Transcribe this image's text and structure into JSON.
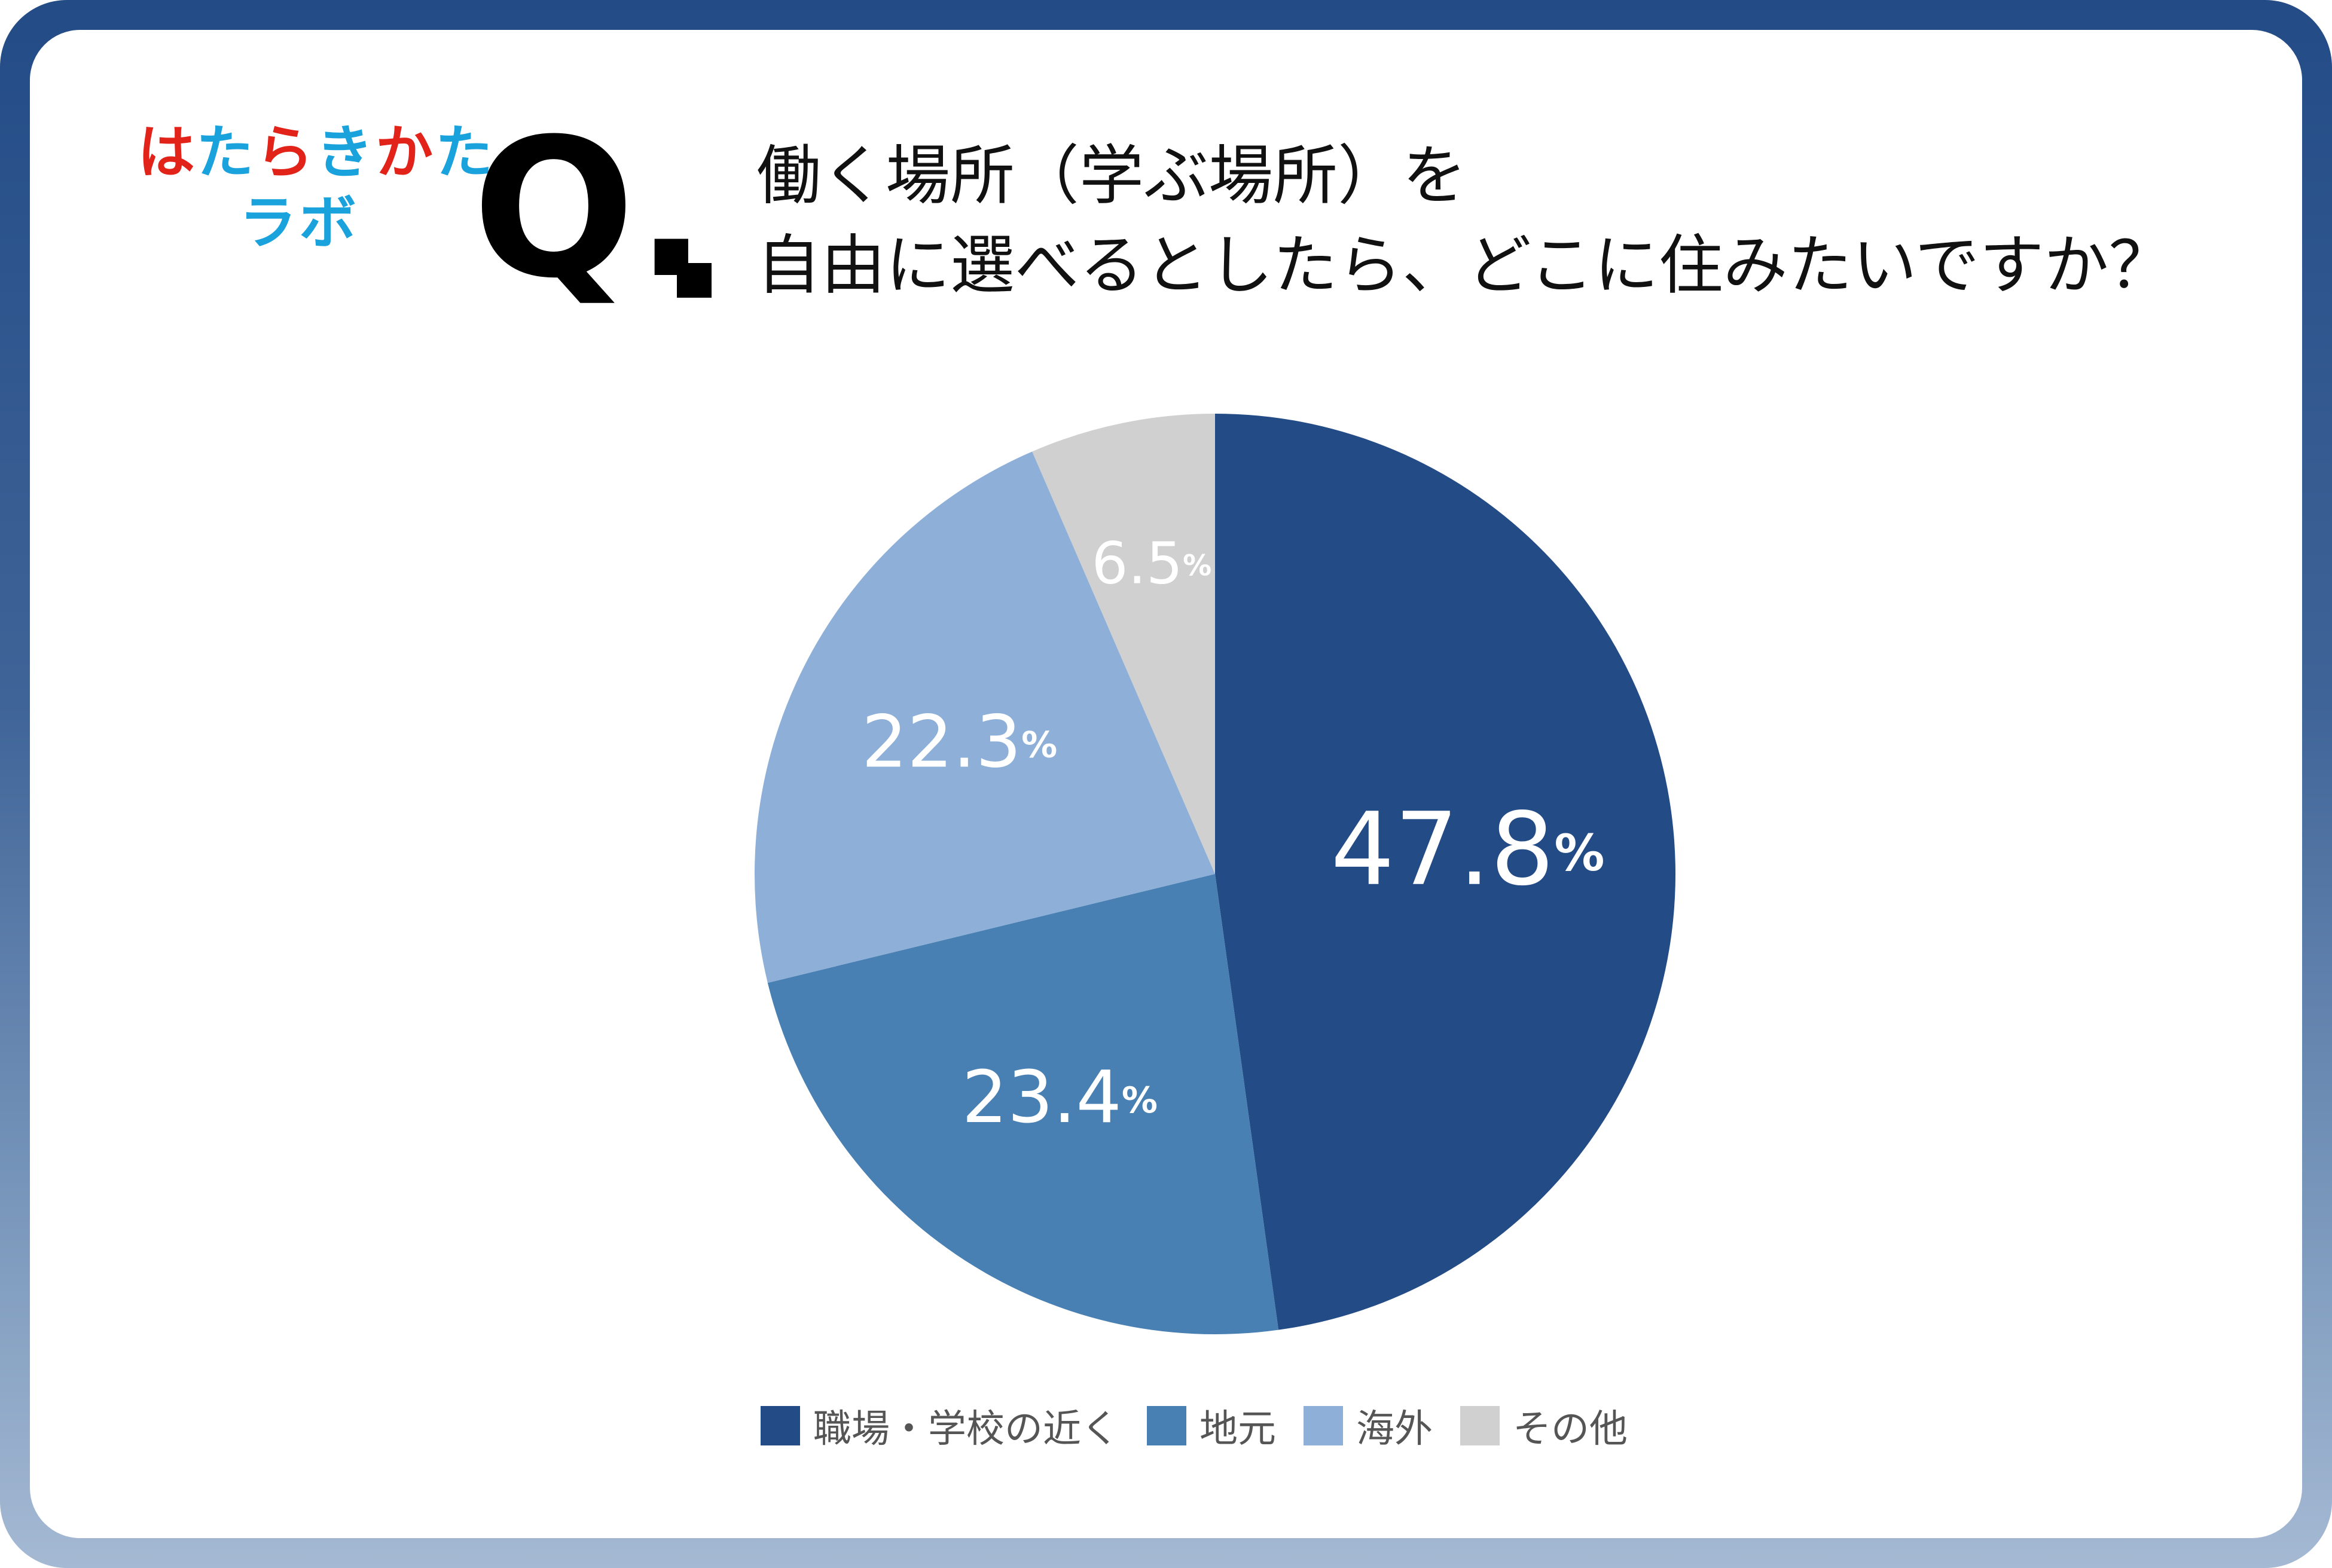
{
  "logo": {
    "line1": [
      "は",
      "た",
      "ら",
      "き",
      "か",
      "た"
    ],
    "line1_colors": [
      "#e2231a",
      "#1aa2dc",
      "#e2231a",
      "#1aa2dc",
      "#e2231a",
      "#1aa2dc"
    ],
    "line2": [
      "ラ",
      "ボ"
    ],
    "line2_colors": [
      "#1aa2dc",
      "#1aa2dc"
    ]
  },
  "question_mark": "Q.",
  "title": {
    "line1": "働く場所（学ぶ場所）を",
    "line2": "自由に選べるとしたら、どこに住みたいですか？"
  },
  "colors": {
    "frame_top": "#234b86",
    "frame_bottom": "#a5b9d3",
    "label_text": "#ffffff",
    "legend_text": "#555555"
  },
  "chart_data": {
    "type": "pie",
    "start_angle": "12 o'clock",
    "direction": "clockwise",
    "slices": [
      {
        "name": "職場・学校の近く",
        "value": 47.8,
        "label": "47.8",
        "unit": "%",
        "color": "#234b86"
      },
      {
        "name": "地元",
        "value": 23.4,
        "label": "23.4",
        "unit": "%",
        "color": "#4880b3"
      },
      {
        "name": "海外",
        "value": 22.3,
        "label": "22.3",
        "unit": "%",
        "color": "#8eb0d8"
      },
      {
        "name": "その他",
        "value": 6.5,
        "label": "6.5",
        "unit": "%",
        "color": "#d0d0d0"
      }
    ],
    "legend_position": "bottom"
  }
}
